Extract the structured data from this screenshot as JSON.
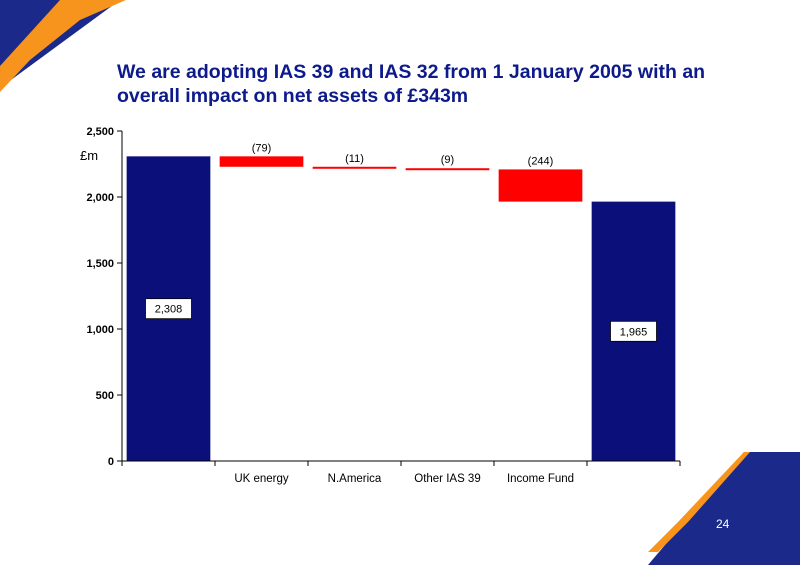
{
  "slide": {
    "title_line1": "We are adopting IAS 39 and IAS 32 from 1 January 2005 with an",
    "title_line2": "overall impact on net assets of £343m",
    "page_number": "24"
  },
  "colors": {
    "title": "#0d1a8c",
    "total_bar": "#0a0f7a",
    "decrease_bar": "#ff0000",
    "corner_orange": "#f7941d",
    "corner_navy": "#1b2a8a"
  },
  "chart_data": {
    "type": "bar",
    "subtype": "waterfall",
    "title": "",
    "xlabel": "",
    "ylabel": "£m",
    "ylim": [
      0,
      2500
    ],
    "yticks": [
      0,
      500,
      1000,
      1500,
      2000,
      2500
    ],
    "ytick_labels": [
      "0",
      "500",
      "1,000",
      "1,500",
      "2,000",
      "2,500"
    ],
    "grid": false,
    "legend": "none",
    "categories": [
      "",
      "UK energy",
      "N.America",
      "Other IAS 39",
      "Income Fund",
      ""
    ],
    "bars": [
      {
        "category": "",
        "kind": "total",
        "start": 0,
        "end": 2308,
        "label": "2,308"
      },
      {
        "category": "UK energy",
        "kind": "decrease",
        "start": 2308,
        "end": 2229,
        "label": "(79)"
      },
      {
        "category": "N.America",
        "kind": "decrease",
        "start": 2229,
        "end": 2218,
        "label": "(11)"
      },
      {
        "category": "Other IAS 39",
        "kind": "decrease",
        "start": 2218,
        "end": 2209,
        "label": "(9)"
      },
      {
        "category": "Income Fund",
        "kind": "decrease",
        "start": 2209,
        "end": 1965,
        "label": "(244)"
      },
      {
        "category": "",
        "kind": "total",
        "start": 0,
        "end": 1965,
        "label": "1,965"
      }
    ]
  }
}
